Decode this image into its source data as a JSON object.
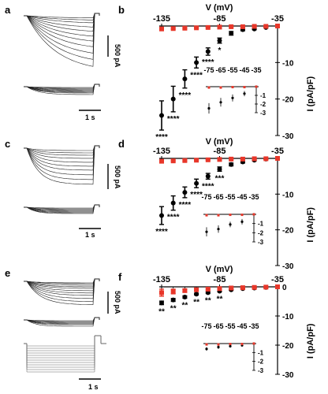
{
  "panels": {
    "a": {
      "label": "a",
      "scale_current": "500 pA",
      "scale_time": "1 s"
    },
    "c": {
      "label": "c",
      "scale_current": "500 pA",
      "scale_time": "1 s"
    },
    "e": {
      "label": "e",
      "scale_current": "500 pA",
      "scale_time": "1 s"
    }
  },
  "colors": {
    "control": "#e8372a",
    "treated": "#000000",
    "line": "#000000"
  },
  "chart_data": [
    {
      "panel": "b",
      "type": "scatter",
      "xlabel": "V (mV)",
      "ylabel": "I (pA/pF)",
      "xlim": [
        -135,
        -35
      ],
      "ylim": [
        -30,
        0
      ],
      "x_ticks": [
        "-135",
        "-85",
        "-35"
      ],
      "y_ticks": [
        "-10",
        "-20",
        "-30"
      ],
      "significance": [
        "****",
        "****",
        "****",
        "****",
        "****",
        "*"
      ],
      "series": [
        {
          "role": "treated",
          "x": [
            -135,
            -125,
            -115,
            -105,
            -95,
            -85,
            -75,
            -65,
            -55,
            -45,
            -35
          ],
          "y": [
            -24.5,
            -20,
            -14.5,
            -10,
            -7,
            -4,
            -2,
            -1,
            -0.8,
            -0.4,
            0
          ],
          "err": [
            4,
            3.5,
            2.5,
            1.5,
            1,
            0.7,
            0.5,
            0.3,
            0.2,
            0.1,
            0
          ]
        },
        {
          "role": "control",
          "x": [
            -135,
            -125,
            -115,
            -105,
            -95,
            -85,
            -75,
            -65,
            -55,
            -45,
            -35
          ],
          "y": [
            -0.8,
            -0.7,
            -0.6,
            -0.5,
            -0.4,
            -0.3,
            -0.2,
            -0.2,
            -0.1,
            -0.1,
            0
          ],
          "err": [
            0.2,
            0.2,
            0.2,
            0.1,
            0.1,
            0.1,
            0.1,
            0.1,
            0.1,
            0.1,
            0
          ]
        }
      ],
      "inset": {
        "x_ticks": [
          "-75",
          "-65",
          "-55",
          "-45",
          "-35"
        ],
        "y_ticks": [
          "-1",
          "-2",
          "-3"
        ],
        "ylim": [
          -3,
          0
        ],
        "treated": [
          -2.5,
          -1.8,
          -1.3,
          -0.8,
          0
        ],
        "control": [
          -0.1,
          -0.1,
          -0.05,
          -0.05,
          0
        ],
        "err": [
          0.6,
          0.5,
          0.4,
          0.3,
          0
        ]
      }
    },
    {
      "panel": "d",
      "type": "scatter",
      "xlabel": "V (mV)",
      "ylabel": "I (pA/pF)",
      "xlim": [
        -135,
        -35
      ],
      "ylim": [
        -30,
        0
      ],
      "x_ticks": [
        "-135",
        "-85",
        "-35"
      ],
      "y_ticks": [
        "-10",
        "-20",
        "-30"
      ],
      "significance": [
        "****",
        "****",
        "****",
        "****",
        "****",
        "***"
      ],
      "series": [
        {
          "role": "treated",
          "x": [
            -135,
            -125,
            -115,
            -105,
            -95,
            -85,
            -75,
            -65,
            -55,
            -45,
            -35
          ],
          "y": [
            -16,
            -12.5,
            -9.5,
            -7,
            -5,
            -3,
            -1.7,
            -1,
            -0.5,
            -0.2,
            0
          ],
          "err": [
            2.5,
            2,
            1.5,
            1.2,
            0.8,
            0.6,
            0.4,
            0.3,
            0.2,
            0.1,
            0
          ]
        },
        {
          "role": "control",
          "x": [
            -135,
            -125,
            -115,
            -105,
            -95,
            -85,
            -75,
            -65,
            -55,
            -45,
            -35
          ],
          "y": [
            -0.8,
            -0.7,
            -0.6,
            -0.5,
            -0.4,
            -0.3,
            -0.2,
            -0.2,
            -0.1,
            -0.1,
            0
          ],
          "err": [
            0.2,
            0.2,
            0.2,
            0.1,
            0.1,
            0.1,
            0.1,
            0.1,
            0.1,
            0.1,
            0
          ]
        }
      ],
      "inset": {
        "x_ticks": [
          "-75",
          "-65",
          "-55",
          "-45",
          "-35"
        ],
        "y_ticks": [
          "-1",
          "-2",
          "-3"
        ],
        "ylim": [
          -3,
          0
        ],
        "treated": [
          -1.9,
          -1.6,
          -1.1,
          -0.8,
          0
        ],
        "control": [
          -0.1,
          -0.1,
          -0.05,
          -0.05,
          0
        ],
        "err": [
          0.5,
          0.4,
          0.3,
          0.3,
          0
        ]
      }
    },
    {
      "panel": "f",
      "type": "scatter",
      "xlabel": "V (mV)",
      "ylabel": "I (pA/pF)",
      "xlim": [
        -135,
        -35
      ],
      "ylim": [
        -30,
        0
      ],
      "x_ticks": [
        "-135",
        "-85",
        "-35"
      ],
      "y_ticks": [
        "0",
        "-10",
        "-20",
        "-30"
      ],
      "significance": [
        "**",
        "**",
        "**",
        "**",
        "**",
        "**"
      ],
      "series": [
        {
          "role": "treated",
          "x": [
            -135,
            -125,
            -115,
            -105,
            -95,
            -85,
            -75,
            -65,
            -55,
            -45,
            -35
          ],
          "y": [
            -5.5,
            -4.5,
            -3.5,
            -2.5,
            -2,
            -1.5,
            -1,
            -0.6,
            -0.4,
            -0.2,
            0
          ],
          "err": [
            0.6,
            0.5,
            0.4,
            0.3,
            0.3,
            0.2,
            0.2,
            0.1,
            0.1,
            0.1,
            0
          ]
        },
        {
          "role": "control",
          "x": [
            -135,
            -125,
            -115,
            -105,
            -95,
            -85,
            -75,
            -65,
            -55,
            -45,
            -35
          ],
          "y": [
            -2,
            -1.6,
            -1.3,
            -1,
            -0.8,
            -0.6,
            -0.4,
            -0.3,
            -0.2,
            -0.1,
            0
          ],
          "err": [
            1.2,
            0.8,
            0.5,
            0.4,
            0.3,
            0.2,
            0.2,
            0.1,
            0.1,
            0.1,
            0
          ]
        }
      ],
      "inset": {
        "x_ticks": [
          "-75",
          "-65",
          "-55",
          "-45",
          "-35"
        ],
        "y_ticks": [
          "-1",
          "-2",
          "-3"
        ],
        "ylim": [
          -3,
          0
        ],
        "treated": [
          -0.6,
          -0.4,
          -0.3,
          -0.2,
          0
        ],
        "control": [
          -0.1,
          -0.1,
          -0.05,
          -0.05,
          0
        ],
        "err": [
          0.2,
          0.2,
          0.1,
          0.1,
          0
        ]
      }
    }
  ]
}
